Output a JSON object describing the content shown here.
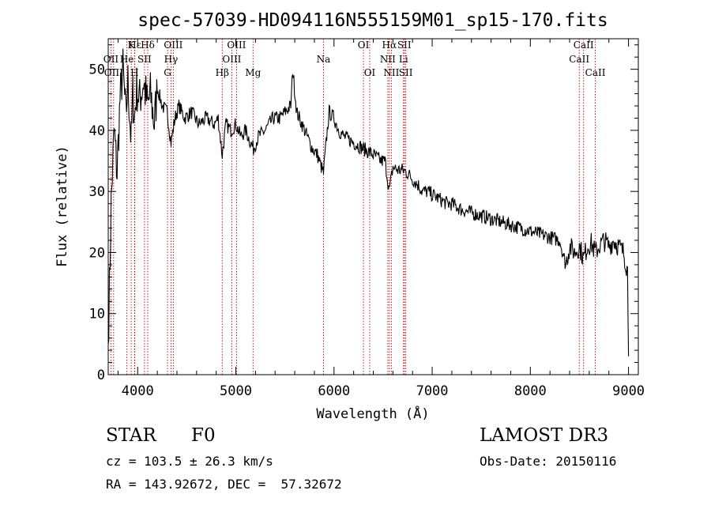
{
  "chart_data": {
    "type": "line",
    "title": "spec-57039-HD094116N555159M01_sp15-170.fits",
    "xlabel": "Wavelength (Å)",
    "ylabel": "Flux (relative)",
    "xlim": [
      3700,
      9100
    ],
    "ylim": [
      0,
      55
    ],
    "x_ticks": [
      4000,
      5000,
      6000,
      7000,
      8000,
      9000
    ],
    "y_ticks": [
      0,
      10,
      20,
      30,
      40,
      50
    ],
    "grid": false,
    "series": [
      {
        "name": "flux",
        "x": [
          3700,
          3730,
          3760,
          3790,
          3820,
          3850,
          3880,
          3900,
          3934,
          3950,
          3968,
          3990,
          4020,
          4060,
          4101,
          4130,
          4170,
          4200,
          4250,
          4300,
          4340,
          4380,
          4420,
          4480,
          4550,
          4620,
          4700,
          4780,
          4820,
          4861,
          4900,
          4950,
          5000,
          5050,
          5100,
          5150,
          5180,
          5230,
          5300,
          5380,
          5450,
          5500,
          5560,
          5580,
          5620,
          5700,
          5780,
          5830,
          5870,
          5893,
          5920,
          5950,
          6000,
          6050,
          6100,
          6200,
          6300,
          6400,
          6480,
          6520,
          6563,
          6600,
          6650,
          6700,
          6750,
          6800,
          6860,
          6900,
          6950,
          7000,
          7050,
          7100,
          7150,
          7200,
          7300,
          7400,
          7500,
          7600,
          7700,
          7800,
          7900,
          8000,
          8100,
          8200,
          8300,
          8360,
          8400,
          8450,
          8500,
          8542,
          8580,
          8620,
          8662,
          8700,
          8750,
          8800,
          8850,
          8900,
          8950,
          8990,
          9000
        ],
        "values": [
          5,
          28,
          40,
          33,
          45,
          50,
          42,
          48,
          38,
          46,
          42,
          47,
          45,
          48,
          44,
          46,
          41,
          47,
          44,
          43,
          38,
          42,
          44,
          42,
          43,
          41,
          42,
          41,
          42,
          36,
          41,
          40,
          41,
          39,
          40,
          38,
          37,
          39,
          40,
          42,
          42,
          43,
          44,
          50,
          43,
          40,
          37,
          36,
          34,
          33,
          38,
          43,
          42,
          40,
          39,
          38,
          37,
          36,
          35,
          35,
          30,
          34,
          33.5,
          33.5,
          33,
          32,
          31,
          30,
          30,
          29.5,
          29,
          28.5,
          28,
          28,
          27,
          26.5,
          26,
          25.5,
          25,
          24.5,
          24,
          23.5,
          23,
          22.5,
          22,
          18,
          21,
          20,
          21,
          19,
          21,
          21.5,
          20,
          21,
          22,
          21,
          22,
          21,
          20,
          17,
          3
        ]
      }
    ],
    "line_labels": [
      {
        "label": "Hε",
        "wavelength": 3970,
        "row": 0
      },
      {
        "label": "OII",
        "wavelength": 3727,
        "row": 1
      },
      {
        "label": "OIII",
        "wavelength": 3755,
        "row": 2
      },
      {
        "label": "K",
        "wavelength": 3934,
        "row": 0
      },
      {
        "label": "He",
        "wavelength": 3890,
        "row": 1
      },
      {
        "label": "SII",
        "wavelength": 4069,
        "row": 1
      },
      {
        "label": "H",
        "wavelength": 3968,
        "row": 2
      },
      {
        "label": "Hδ",
        "wavelength": 4102,
        "row": 0
      },
      {
        "label": "OIII",
        "wavelength": 4363,
        "row": 0
      },
      {
        "label": "Hγ",
        "wavelength": 4340,
        "row": 1
      },
      {
        "label": "G",
        "wavelength": 4304,
        "row": 2
      },
      {
        "label": "Hβ",
        "wavelength": 4861,
        "row": 2
      },
      {
        "label": "OIII",
        "wavelength": 5007,
        "row": 0
      },
      {
        "label": "OIII",
        "wavelength": 4959,
        "row": 1
      },
      {
        "label": "Mg",
        "wavelength": 5175,
        "row": 2
      },
      {
        "label": "Na",
        "wavelength": 5893,
        "row": 1
      },
      {
        "label": "OI",
        "wavelength": 6300,
        "row": 0
      },
      {
        "label": "OI",
        "wavelength": 6364,
        "row": 2
      },
      {
        "label": "Hα",
        "wavelength": 6563,
        "row": 0
      },
      {
        "label": "SII",
        "wavelength": 6716,
        "row": 0
      },
      {
        "label": "NII",
        "wavelength": 6548,
        "row": 1
      },
      {
        "label": "Li",
        "wavelength": 6708,
        "row": 1
      },
      {
        "label": "NII",
        "wavelength": 6584,
        "row": 2
      },
      {
        "label": "SII",
        "wavelength": 6731,
        "row": 2
      },
      {
        "label": "CaII",
        "wavelength": 8542,
        "row": 0
      },
      {
        "label": "CaII",
        "wavelength": 8498,
        "row": 1
      },
      {
        "label": "CaII",
        "wavelength": 8662,
        "row": 2
      }
    ]
  },
  "info": {
    "object_class": "STAR",
    "subclass": "F0",
    "survey": "LAMOST DR3",
    "redshift": "cz = 103.5 ± 26.3 km/s",
    "obs_date": "Obs-Date: 20150116",
    "coords": "RA = 143.92672, DEC =  57.32672"
  }
}
